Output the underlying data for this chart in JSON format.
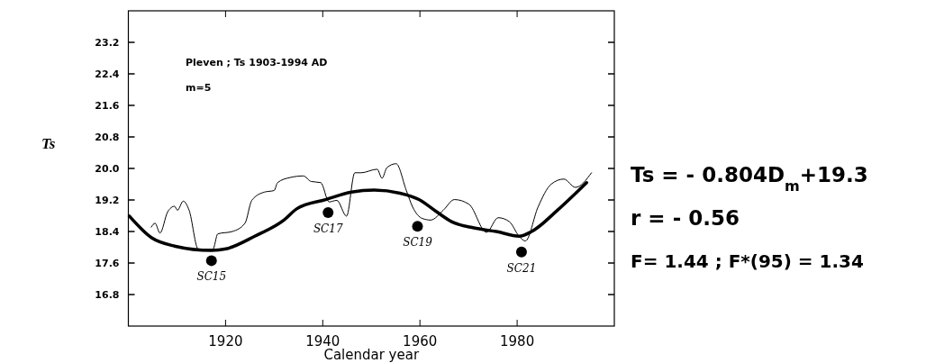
{
  "chart_data": {
    "type": "line",
    "ylabel": "Ts",
    "xlabel": "Calendar year",
    "xlim": [
      1900,
      2000
    ],
    "xticks": [
      1920,
      1940,
      1960,
      1980
    ],
    "ylim": [
      16,
      24
    ],
    "yticks": [
      16.8,
      17.6,
      18.4,
      19.2,
      {
        "value": 20,
        "label": "20.0"
      },
      20.8,
      21.6,
      22.4,
      23.2
    ],
    "grid": false,
    "series": [
      {
        "color": "#000000",
        "line_style": "solid",
        "x": [
          1904.7,
          1905.5,
          1906.5,
          1908.1,
          1909.5,
          1910.1,
          1911.3,
          1912.5,
          1914.4,
          1917.4,
          1918.4,
          1921.4,
          1924.0,
          1925.4,
          1928.0,
          1930.0,
          1930.7,
          1933.3,
          1936.0,
          1937.6,
          1939.6,
          1941.3,
          1942.9,
          1944.9,
          1946.6,
          1947.9,
          1951.2,
          1952.2,
          1953.2,
          1955.1,
          1957.2,
          1958.5,
          1960.5,
          1962.2,
          1964.8,
          1967.1,
          1970.1,
          1973.7,
          1976.1,
          1978.4,
          1980.4,
          1981.7,
          1984.3,
          1987.0,
          1989.6,
          1992.0,
          1995.3
        ],
        "values": [
          18.51,
          18.61,
          18.36,
          18.9,
          19.04,
          18.94,
          19.17,
          18.94,
          17.95,
          17.95,
          18.34,
          18.4,
          18.61,
          19.19,
          19.4,
          19.44,
          19.64,
          19.77,
          19.81,
          19.67,
          19.64,
          19.15,
          19.19,
          18.79,
          19.89,
          19.89,
          19.98,
          19.75,
          20.02,
          20.12,
          19.44,
          19.02,
          18.73,
          18.69,
          18.94,
          19.21,
          19.09,
          18.38,
          18.75,
          18.65,
          18.28,
          18.16,
          19.02,
          19.6,
          19.73,
          19.52,
          19.89
        ]
      },
      {
        "color": "#000000",
        "line_style": "solid",
        "x": [
          1900.2,
          1904.8,
          1909.5,
          1917.1,
          1920.1,
          1926.0,
          1932.0,
          1934.7,
          1940.6,
          1945.9,
          1950.6,
          1955.9,
          1959.8,
          1963.2,
          1966.5,
          1971.1,
          1975.7,
          1980.4,
          1983.0,
          1988.3,
          1994.3
        ],
        "values": [
          18.79,
          18.24,
          18.03,
          17.92,
          17.96,
          18.28,
          18.69,
          18.98,
          19.21,
          19.4,
          19.45,
          19.37,
          19.21,
          18.92,
          18.65,
          18.49,
          18.4,
          18.28,
          18.4,
          18.94,
          19.64
        ]
      },
      {
        "type": "scatter",
        "color": "#000000",
        "marker": "circle",
        "x": [
          1917.1,
          1941.1,
          1959.5,
          1980.9
        ],
        "values": [
          17.66,
          18.88,
          18.53,
          17.88
        ]
      }
    ],
    "annotations": [
      "Pleven ; Ts 1903-1994 AD",
      "m=5",
      "Ts = - 0.804D$_{m}$+19.3",
      "r = - 0.56",
      "F= 1.44 ;  F*(95) = 1.34",
      {
        "text": "SC15",
        "x": 1917.1,
        "y": 17.66
      },
      {
        "text": "SC17",
        "x": 1941.1,
        "y": 18.88
      },
      {
        "text": "SC19",
        "x": 1959.5,
        "y": 18.53
      },
      {
        "text": "SC21",
        "x": 1980.9,
        "y": 17.88
      }
    ]
  }
}
